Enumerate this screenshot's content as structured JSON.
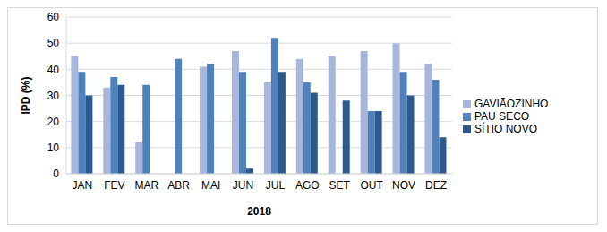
{
  "chart_data": {
    "type": "bar",
    "categories": [
      "JAN",
      "FEV",
      "MAR",
      "ABR",
      "MAI",
      "JUN",
      "JUL",
      "AGO",
      "SET",
      "OUT",
      "NOV",
      "DEZ"
    ],
    "series": [
      {
        "name": "GAVIÃOZINHO",
        "color": "#a6b6dc",
        "values": [
          45,
          33,
          12,
          null,
          41,
          47,
          35,
          44,
          45,
          47,
          50,
          42
        ]
      },
      {
        "name": "PAU SECO",
        "color": "#4f81bd",
        "values": [
          39,
          37,
          34,
          44,
          42,
          39,
          52,
          35,
          null,
          24,
          39,
          36
        ]
      },
      {
        "name": "SÍTIO NOVO",
        "color": "#2c5a8e",
        "values": [
          30,
          34,
          null,
          null,
          null,
          2,
          39,
          31,
          28,
          24,
          30,
          14
        ]
      }
    ],
    "x_label": "2018",
    "y_label": "IPD (%)",
    "ylim": [
      0,
      60
    ],
    "yticks": [
      0,
      10,
      20,
      30,
      40,
      50,
      60
    ],
    "grid": true,
    "legend": "right"
  }
}
